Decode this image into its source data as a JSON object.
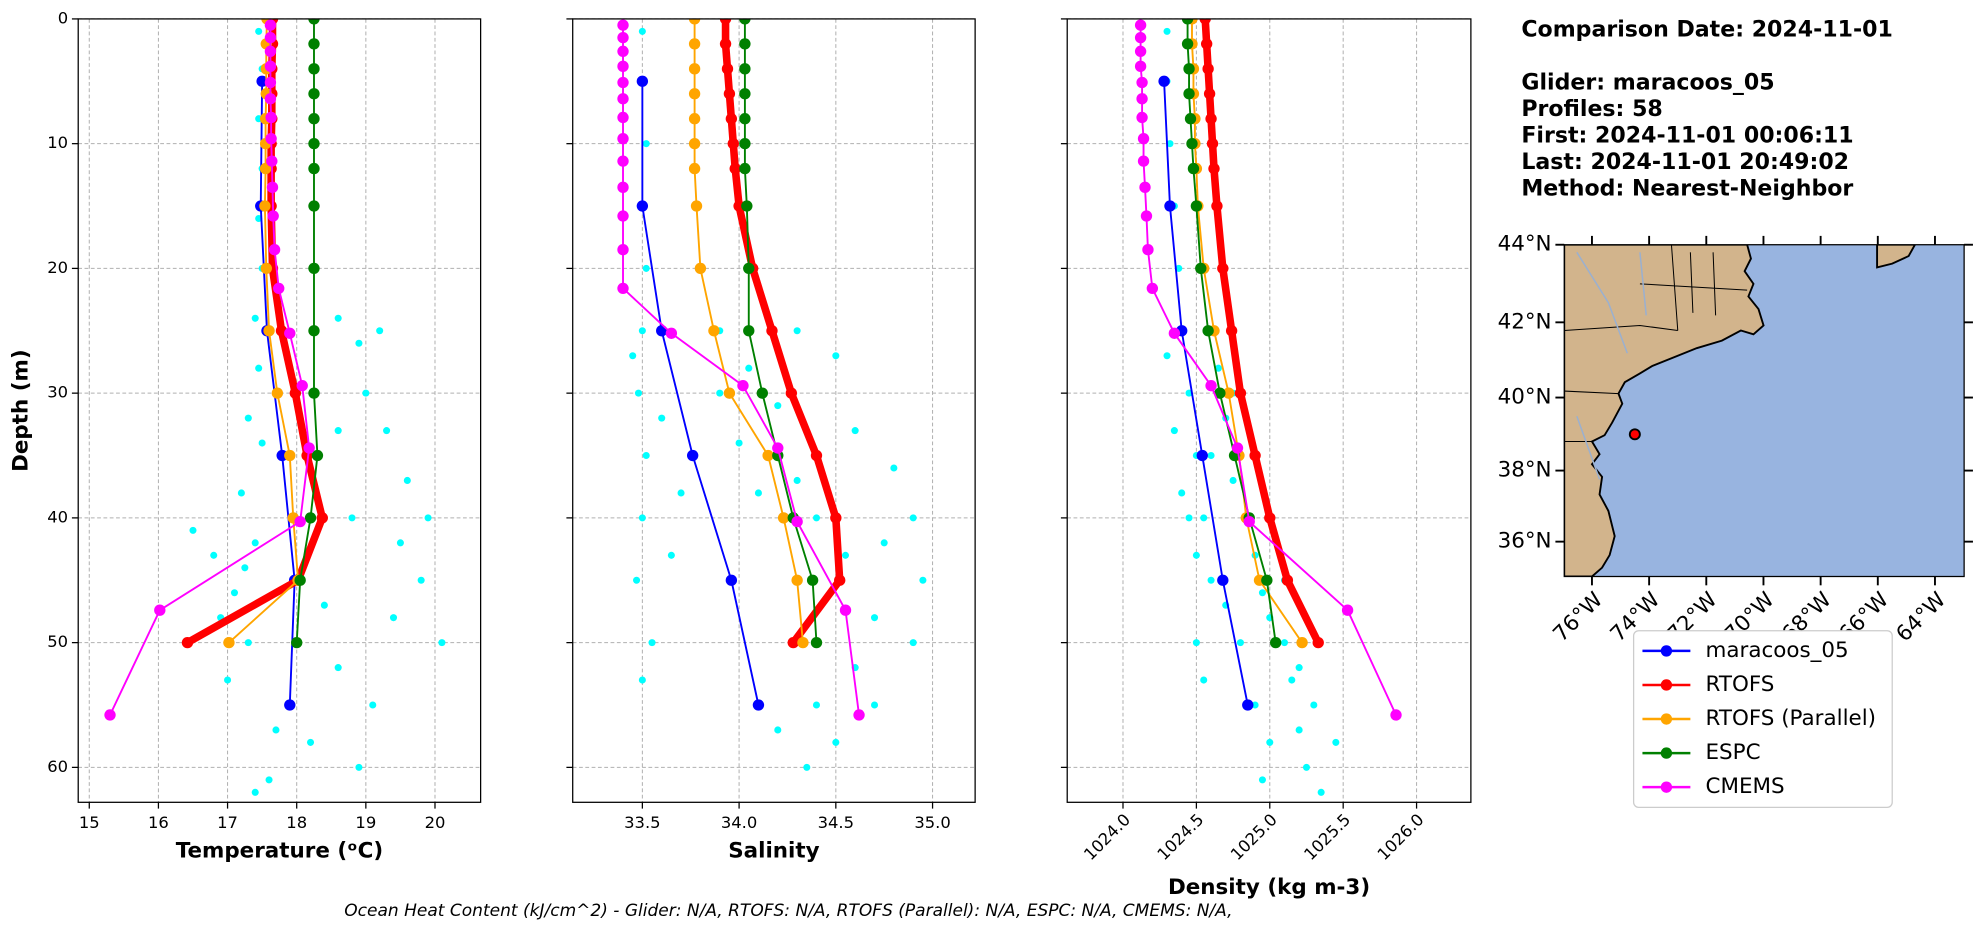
{
  "header": {
    "lines": [
      "Comparison Date: 2024-11-01",
      "Glider: maracoos_05",
      "Profiles: 58",
      "First: 2024-11-01 00:06:11",
      "Last: 2024-11-01 20:49:02",
      "Method: Nearest-Neighbor"
    ]
  },
  "footer": "Ocean Heat Content (kJ/cm^2) - Glider: N/A,  RTOFS: N/A,  RTOFS (Parallel): N/A,  ESPC: N/A,  CMEMS: N/A,",
  "chart_data": [
    {
      "type": "line",
      "xlabel": "Temperature (ᵒC)",
      "ylabel": "Depth (m)",
      "grid": true,
      "xlim": [
        14.84,
        20.66
      ],
      "xticks": [
        15,
        16,
        17,
        18,
        19,
        20
      ],
      "ylim": [
        62.8,
        0
      ],
      "yticks": [
        0,
        10,
        20,
        30,
        40,
        50,
        60
      ],
      "scatter": {
        "color": "#00ffff",
        "x": [
          17.45,
          17.5,
          17.45,
          17.5,
          17.45,
          17.5,
          17.4,
          17.45,
          17.3,
          17.5,
          17.2,
          17.4,
          17.1,
          17.3,
          17.0,
          17.25,
          16.8,
          16.5,
          16.9,
          18.6,
          18.9,
          19.2,
          19.0,
          18.6,
          19.3,
          19.6,
          19.9,
          20.1,
          19.8,
          19.4,
          19.1,
          18.9,
          18.2,
          18.6,
          18.4,
          17.7,
          17.6,
          17.4,
          18.8,
          19.5
        ],
        "y": [
          1,
          4,
          8,
          12,
          16,
          20,
          24,
          28,
          32,
          34,
          38,
          42,
          46,
          50,
          53,
          44,
          43,
          41,
          48,
          24,
          26,
          25,
          30,
          33,
          33,
          37,
          40,
          50,
          45,
          48,
          55,
          60,
          58,
          52,
          47,
          57,
          61,
          62,
          40,
          42
        ]
      },
      "series": [
        {
          "name": "maracoos_05",
          "color": "#0000ff",
          "linewidth": 1.5,
          "y": [
            5,
            15,
            25,
            35,
            45,
            55
          ],
          "x": [
            17.5,
            17.48,
            17.57,
            17.79,
            17.97,
            17.9
          ]
        },
        {
          "name": "RTOFS",
          "color": "#ff0000",
          "linewidth": 6,
          "y": [
            0,
            2,
            4,
            6,
            8,
            10,
            12,
            15,
            20,
            25,
            30,
            35,
            40,
            45,
            50
          ],
          "x": [
            17.65,
            17.65,
            17.64,
            17.64,
            17.64,
            17.63,
            17.63,
            17.63,
            17.65,
            17.78,
            17.98,
            18.15,
            18.37,
            18.02,
            16.42
          ]
        },
        {
          "name": "RTOFS (Parallel)",
          "color": "#ffa500",
          "linewidth": 1.5,
          "y": [
            0,
            2,
            4,
            6,
            8,
            10,
            12,
            15,
            20,
            25,
            30,
            35,
            40,
            45,
            50
          ],
          "x": [
            17.57,
            17.56,
            17.56,
            17.56,
            17.55,
            17.55,
            17.55,
            17.54,
            17.56,
            17.6,
            17.72,
            17.9,
            17.95,
            18.02,
            17.02
          ]
        },
        {
          "name": "ESPC",
          "color": "#008000",
          "linewidth": 1.5,
          "y": [
            0,
            2,
            4,
            6,
            8,
            10,
            12,
            15,
            20,
            25,
            30,
            35,
            40,
            45,
            50
          ],
          "x": [
            18.25,
            18.25,
            18.25,
            18.25,
            18.25,
            18.25,
            18.25,
            18.25,
            18.25,
            18.25,
            18.25,
            18.3,
            18.2,
            18.05,
            18.0
          ]
        },
        {
          "name": "CMEMS",
          "color": "#ff00ff",
          "linewidth": 1.5,
          "y": [
            0.5,
            1.5,
            2.6,
            3.8,
            5.1,
            6.4,
            7.9,
            9.6,
            11.4,
            13.5,
            15.8,
            18.5,
            21.6,
            25.2,
            29.4,
            34.4,
            40.3,
            47.4,
            55.8
          ],
          "x": [
            17.62,
            17.62,
            17.62,
            17.62,
            17.62,
            17.62,
            17.63,
            17.63,
            17.64,
            17.65,
            17.66,
            17.68,
            17.74,
            17.9,
            18.08,
            18.18,
            18.05,
            16.02,
            15.3
          ]
        }
      ]
    },
    {
      "type": "line",
      "xlabel": "Salinity",
      "grid": true,
      "xlim": [
        33.14,
        35.22
      ],
      "xticks": [
        33.5,
        {
          "value": 34,
          "label": "34.0"
        },
        34.5,
        {
          "value": 35,
          "label": "35.0"
        }
      ],
      "ylim": [
        62.8,
        0
      ],
      "yticks": [
        0,
        10,
        20,
        30,
        40,
        50,
        60
      ],
      "scatter": {
        "color": "#00ffff",
        "x": [
          33.5,
          33.5,
          33.52,
          33.5,
          33.52,
          33.5,
          33.48,
          33.52,
          33.5,
          33.47,
          33.55,
          33.5,
          33.45,
          33.6,
          33.65,
          33.7,
          33.9,
          34.05,
          34.3,
          34.5,
          34.2,
          34.6,
          34.8,
          34.9,
          34.95,
          34.7,
          34.55,
          34.4,
          34.3,
          34.6,
          34.4,
          34.5,
          34.35,
          34.2,
          34.7,
          34.9,
          34.75,
          33.9,
          34.0,
          34.1
        ],
        "y": [
          1,
          5,
          10,
          15,
          20,
          25,
          30,
          35,
          40,
          45,
          50,
          53,
          27,
          32,
          43,
          38,
          25,
          28,
          25,
          27,
          31,
          33,
          36,
          40,
          45,
          48,
          43,
          40,
          37,
          52,
          55,
          58,
          60,
          57,
          55,
          50,
          42,
          30,
          34,
          38
        ]
      },
      "series": [
        {
          "color": "#0000ff",
          "linewidth": 1.5,
          "y": [
            5,
            15,
            25,
            35,
            45,
            55
          ],
          "x": [
            33.5,
            33.5,
            33.6,
            33.76,
            33.96,
            34.1
          ]
        },
        {
          "color": "#ff0000",
          "linewidth": 6,
          "y": [
            0,
            2,
            4,
            6,
            8,
            10,
            12,
            15,
            20,
            25,
            30,
            35,
            40,
            45,
            50
          ],
          "x": [
            33.93,
            33.93,
            33.94,
            33.95,
            33.96,
            33.97,
            33.98,
            34.0,
            34.07,
            34.17,
            34.27,
            34.4,
            34.5,
            34.52,
            34.28
          ]
        },
        {
          "color": "#ffa500",
          "linewidth": 1.5,
          "y": [
            0,
            2,
            4,
            6,
            8,
            10,
            12,
            15,
            20,
            25,
            30,
            35,
            40,
            45,
            50
          ],
          "x": [
            33.77,
            33.77,
            33.77,
            33.77,
            33.77,
            33.77,
            33.77,
            33.78,
            33.8,
            33.87,
            33.95,
            34.15,
            34.23,
            34.3,
            34.33
          ]
        },
        {
          "color": "#008000",
          "linewidth": 1.5,
          "y": [
            0,
            2,
            4,
            6,
            8,
            10,
            12,
            15,
            20,
            25,
            30,
            35,
            40,
            45,
            50
          ],
          "x": [
            34.03,
            34.03,
            34.03,
            34.03,
            34.03,
            34.03,
            34.03,
            34.04,
            34.05,
            34.05,
            34.12,
            34.2,
            34.28,
            34.38,
            34.4
          ]
        },
        {
          "color": "#ff00ff",
          "linewidth": 1.5,
          "y": [
            0.5,
            1.5,
            2.6,
            3.8,
            5.1,
            6.4,
            7.9,
            9.6,
            11.4,
            13.5,
            15.8,
            18.5,
            21.6,
            25.2,
            29.4,
            34.4,
            40.3,
            47.4,
            55.8
          ],
          "x": [
            33.4,
            33.4,
            33.4,
            33.4,
            33.4,
            33.4,
            33.4,
            33.4,
            33.4,
            33.4,
            33.4,
            33.4,
            33.4,
            33.65,
            34.02,
            34.2,
            34.3,
            34.55,
            34.62
          ]
        }
      ]
    },
    {
      "type": "line",
      "xlabel": "Density (kg m-3)",
      "grid": true,
      "xtick_rotation": 45,
      "xlim": [
        1023.62,
        1026.37
      ],
      "xticks": [
        {
          "value": 1024,
          "label": "1024.0"
        },
        1024.5,
        {
          "value": 1025,
          "label": "1025.0"
        },
        1025.5,
        {
          "value": 1026,
          "label": "1026.0"
        }
      ],
      "ylim": [
        62.8,
        0
      ],
      "yticks": [
        0,
        10,
        20,
        30,
        40,
        50,
        60
      ],
      "scatter": {
        "color": "#00ffff",
        "x": [
          1024.3,
          1024.3,
          1024.32,
          1024.35,
          1024.38,
          1024.4,
          1024.45,
          1024.5,
          1024.55,
          1024.6,
          1024.5,
          1024.55,
          1024.3,
          1024.35,
          1024.4,
          1024.5,
          1024.65,
          1024.7,
          1024.75,
          1024.85,
          1024.9,
          1024.95,
          1025.0,
          1025.1,
          1025.15,
          1025.2,
          1025.25,
          1025.3,
          1025.45,
          1025.35,
          1024.8,
          1024.7,
          1024.9,
          1025.0,
          1024.95,
          1024.6,
          1024.75,
          1024.45,
          1025.1,
          1025.2
        ],
        "y": [
          1,
          5,
          10,
          15,
          20,
          25,
          30,
          35,
          40,
          45,
          50,
          53,
          27,
          33,
          38,
          43,
          28,
          32,
          37,
          40,
          43,
          46,
          48,
          50,
          53,
          57,
          60,
          55,
          58,
          62,
          50,
          47,
          55,
          58,
          61,
          35,
          30,
          40,
          45,
          52
        ]
      },
      "series": [
        {
          "color": "#0000ff",
          "linewidth": 1.5,
          "y": [
            5,
            15,
            25,
            35,
            45,
            55
          ],
          "x": [
            1024.28,
            1024.32,
            1024.4,
            1024.54,
            1024.68,
            1024.85
          ]
        },
        {
          "color": "#ff0000",
          "linewidth": 6,
          "y": [
            0,
            2,
            4,
            6,
            8,
            10,
            12,
            15,
            20,
            25,
            30,
            35,
            40,
            45,
            50
          ],
          "x": [
            1024.56,
            1024.57,
            1024.58,
            1024.59,
            1024.6,
            1024.61,
            1024.62,
            1024.64,
            1024.68,
            1024.74,
            1024.8,
            1024.9,
            1025.0,
            1025.12,
            1025.33
          ]
        },
        {
          "color": "#ffa500",
          "linewidth": 1.5,
          "y": [
            0,
            2,
            4,
            6,
            8,
            10,
            12,
            15,
            20,
            25,
            30,
            35,
            40,
            45,
            50
          ],
          "x": [
            1024.47,
            1024.47,
            1024.48,
            1024.48,
            1024.49,
            1024.49,
            1024.5,
            1024.51,
            1024.55,
            1024.62,
            1024.72,
            1024.79,
            1024.84,
            1024.93,
            1025.22
          ]
        },
        {
          "color": "#008000",
          "linewidth": 1.5,
          "y": [
            0,
            2,
            4,
            6,
            8,
            10,
            12,
            15,
            20,
            25,
            30,
            35,
            40,
            45,
            50
          ],
          "x": [
            1024.44,
            1024.44,
            1024.45,
            1024.45,
            1024.46,
            1024.47,
            1024.48,
            1024.5,
            1024.53,
            1024.58,
            1024.66,
            1024.76,
            1024.86,
            1024.98,
            1025.04
          ]
        },
        {
          "color": "#ff00ff",
          "linewidth": 1.5,
          "y": [
            0.5,
            1.5,
            2.6,
            3.8,
            5.1,
            6.4,
            7.9,
            9.6,
            11.4,
            13.5,
            15.8,
            18.5,
            21.6,
            25.2,
            29.4,
            34.4,
            40.3,
            47.4,
            55.8
          ],
          "x": [
            1024.12,
            1024.12,
            1024.12,
            1024.12,
            1024.13,
            1024.13,
            1024.13,
            1024.14,
            1024.14,
            1024.15,
            1024.16,
            1024.17,
            1024.2,
            1024.35,
            1024.6,
            1024.78,
            1024.86,
            1025.53,
            1025.86
          ]
        }
      ]
    },
    {
      "type": "map",
      "projection": "mercator",
      "land_color": "#d2b48c",
      "ocean_color": "#98b4e0",
      "xlim": [
        -76.97,
        -62.98
      ],
      "xticks": [
        {
          "value": -76,
          "label": "76°W"
        },
        {
          "value": -74,
          "label": "74°W"
        },
        {
          "value": -72,
          "label": "72°W"
        },
        {
          "value": -70,
          "label": "70°W"
        },
        {
          "value": -68,
          "label": "68°W"
        },
        {
          "value": -66,
          "label": "66°W"
        },
        {
          "value": -64,
          "label": "64°W"
        }
      ],
      "ylim": [
        35,
        44
      ],
      "yticks": [
        {
          "value": 36,
          "label": "36°N"
        },
        {
          "value": 38,
          "label": "38°N"
        },
        {
          "value": 40,
          "label": "40°N"
        },
        {
          "value": 42,
          "label": "42°N"
        },
        {
          "value": 44,
          "label": "44°N"
        }
      ],
      "series": [
        {
          "color": "#ff0000",
          "x": [
            -74.5
          ],
          "y": [
            39.0
          ]
        }
      ]
    }
  ]
}
